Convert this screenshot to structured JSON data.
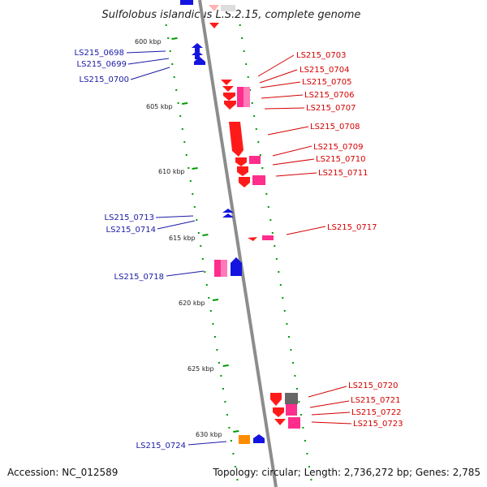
{
  "title": "Sulfolobus islandicus L.S.2.15, complete genome",
  "footer": {
    "accession": "Accession: NC_012589",
    "summary": "Topology: circular; Length: 2,736,272 bp; Genes: 2,785"
  },
  "ruler": [
    "600 kbp",
    "605 kbp",
    "610 kbp",
    "615 kbp",
    "620 kbp",
    "625 kbp",
    "630 kbp"
  ],
  "colors": {
    "forward": "#ff1a1a",
    "forward_pink": "#ff2d8c",
    "reverse": "#1414e0",
    "orange": "#ff8c00",
    "gray": "#666666",
    "backbone": "#8c8c8c",
    "tick": "#009900",
    "right_label": "#d40000",
    "left_label": "#1a1aa6"
  },
  "genes_right": [
    "LS215_0703",
    "LS215_0704",
    "LS215_0705",
    "LS215_0706",
    "LS215_0707",
    "LS215_0708",
    "LS215_0709",
    "LS215_0710",
    "LS215_0711",
    "LS215_0717",
    "LS215_0720",
    "LS215_0721",
    "LS215_0722",
    "LS215_0723"
  ],
  "genes_left": [
    "LS215_0698",
    "LS215_0699",
    "LS215_0700",
    "LS215_0713",
    "LS215_0714",
    "LS215_0718",
    "LS215_0724"
  ]
}
